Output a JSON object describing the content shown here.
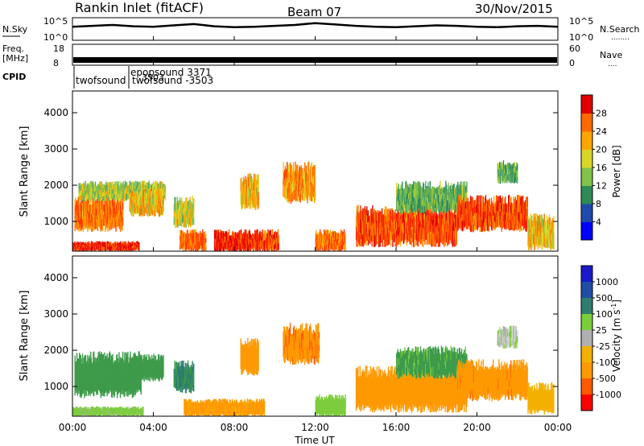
{
  "header": {
    "station": "Rankin Inlet (fitACF)",
    "beam": "Beam 07",
    "date": "30/Nov/2015"
  },
  "side_labels": {
    "nsky": "N.Sky",
    "freq_line1": "Freq.",
    "freq_line2": "[MHz]",
    "cpid": "CPID",
    "nsearch": "N.Search",
    "nsearch_dots": "........",
    "nave": "Nave",
    "nave_dots": "....",
    "noise_tick_hi": "10^5",
    "noise_tick_lo": "10^0",
    "freq_tick_hi": "18",
    "freq_tick_lo": "8",
    "nave_tick_hi": "60",
    "nave_tick_lo": "0"
  },
  "cpid_labels": [
    "twofsound",
    "epopsound 3371",
    "twofsound -3503",
    "3503"
  ],
  "colors": {
    "power_scale": [
      "#0000ff",
      "#1f49ab",
      "#2e8b57",
      "#55a868",
      "#7fc34a",
      "#d9d629",
      "#ffa500",
      "#ff6a00",
      "#ff3300",
      "#e00000"
    ],
    "velocity_scale": [
      "#ff0000",
      "#ff5a00",
      "#ff9900",
      "#f4b000",
      "#d9d9d9",
      "#b0b0b0",
      "#7ccd3c",
      "#3d9b4a",
      "#2e7d6e",
      "#1f4fa3",
      "#1a1acc"
    ]
  },
  "chart_data": [
    {
      "type": "line",
      "panel": "noise",
      "series": [
        {
          "name": "N.Sky",
          "x": [
            0,
            1,
            2,
            3,
            4,
            5,
            6,
            7,
            8,
            9,
            10,
            11,
            12,
            13,
            14,
            15,
            16,
            17,
            18,
            19,
            20,
            21,
            22,
            23,
            24
          ],
          "values": [
            3,
            3.2,
            3.4,
            3.1,
            3.0,
            3.3,
            3.6,
            3.1,
            2.9,
            3.0,
            3.2,
            3.4,
            3.8,
            3.5,
            3.2,
            3.0,
            2.9,
            3.1,
            3.3,
            3.2,
            3.0,
            2.9,
            3.1,
            3.2,
            3.0
          ]
        }
      ],
      "xlim": [
        0,
        24
      ],
      "ylim": [
        0,
        5
      ],
      "ylabel_left": "N.Sky",
      "ylabel_right": "N.Search"
    },
    {
      "type": "line",
      "panel": "frequency",
      "series": [
        {
          "name": "Freq.",
          "x": [
            0,
            24
          ],
          "values": [
            10.5,
            10.5
          ]
        }
      ],
      "xlim": [
        0,
        24
      ],
      "ylim": [
        8,
        18
      ],
      "ylabel_left": "Freq. [MHz]",
      "ylabel_right": "Nave"
    },
    {
      "type": "heatmap",
      "panel": "power",
      "ylabel": "Slant Range [km]",
      "colorbar_label": "Power [dB]",
      "colorbar_ticks": [
        4,
        8,
        12,
        16,
        20,
        24,
        28
      ],
      "colorbar_range": [
        0,
        32
      ],
      "xlim": [
        0,
        24
      ],
      "ylim": [
        180,
        4600
      ],
      "yticks": [
        1000,
        2000,
        3000,
        4000
      ],
      "regions": [
        {
          "t0": 0.0,
          "t1": 3.3,
          "r0": 200,
          "r1": 420,
          "value": 28
        },
        {
          "t0": 0.1,
          "t1": 2.5,
          "r0": 800,
          "r1": 1600,
          "value": 24
        },
        {
          "t0": 0.3,
          "t1": 4.6,
          "r0": 1600,
          "r1": 2050,
          "value": 16
        },
        {
          "t0": 2.8,
          "t1": 4.5,
          "r0": 1200,
          "r1": 1800,
          "value": 20
        },
        {
          "t0": 5.0,
          "t1": 6.0,
          "r0": 900,
          "r1": 1600,
          "value": 16
        },
        {
          "t0": 5.3,
          "t1": 6.6,
          "r0": 200,
          "r1": 700,
          "value": 24
        },
        {
          "t0": 7.0,
          "t1": 9.5,
          "r0": 200,
          "r1": 700,
          "value": 28
        },
        {
          "t0": 8.3,
          "t1": 9.2,
          "r0": 1400,
          "r1": 2200,
          "value": 20
        },
        {
          "t0": 9.4,
          "t1": 10.2,
          "r0": 200,
          "r1": 700,
          "value": 26
        },
        {
          "t0": 10.4,
          "t1": 12.0,
          "r0": 1600,
          "r1": 2500,
          "value": 22
        },
        {
          "t0": 12.0,
          "t1": 13.5,
          "r0": 200,
          "r1": 700,
          "value": 24
        },
        {
          "t0": 14.0,
          "t1": 19.0,
          "r0": 400,
          "r1": 1300,
          "value": 26
        },
        {
          "t0": 16.0,
          "t1": 19.5,
          "r0": 1300,
          "r1": 2000,
          "value": 12
        },
        {
          "t0": 19.0,
          "t1": 22.5,
          "r0": 800,
          "r1": 1600,
          "value": 26
        },
        {
          "t0": 21.0,
          "t1": 22.0,
          "r0": 2100,
          "r1": 2600,
          "value": 12
        },
        {
          "t0": 22.5,
          "t1": 23.8,
          "r0": 300,
          "r1": 1100,
          "value": 20
        }
      ]
    },
    {
      "type": "heatmap",
      "panel": "velocity",
      "ylabel": "Slant Range [km]",
      "colorbar_label": "Velocity [m s^-1]",
      "colorbar_ticks": [
        1000,
        500,
        100,
        25,
        -25,
        -100,
        -500,
        -1000
      ],
      "xlim": [
        0,
        24
      ],
      "ylim": [
        180,
        4600
      ],
      "yticks": [
        1000,
        2000,
        3000,
        4000
      ],
      "xticks": [
        "00:00",
        "04:00",
        "08:00",
        "12:00",
        "16:00",
        "20:00",
        "00:00"
      ],
      "xlabel": "Time UT",
      "regions": [
        {
          "t0": 0.1,
          "t1": 3.4,
          "r0": 800,
          "r1": 1800,
          "value": 200
        },
        {
          "t0": 0.0,
          "t1": 3.5,
          "r0": 200,
          "r1": 420,
          "value": 50
        },
        {
          "t0": 2.8,
          "t1": 4.5,
          "r0": 1200,
          "r1": 1800,
          "value": 300
        },
        {
          "t0": 5.0,
          "t1": 6.0,
          "r0": 900,
          "r1": 1600,
          "value": 600
        },
        {
          "t0": 5.5,
          "t1": 9.5,
          "r0": 200,
          "r1": 600,
          "value": -150
        },
        {
          "t0": 8.3,
          "t1": 9.2,
          "r0": 1400,
          "r1": 2200,
          "value": -200
        },
        {
          "t0": 10.4,
          "t1": 12.2,
          "r0": 1700,
          "r1": 2600,
          "value": -400
        },
        {
          "t0": 12.0,
          "t1": 13.5,
          "r0": 200,
          "r1": 700,
          "value": 60
        },
        {
          "t0": 14.0,
          "t1": 19.5,
          "r0": 400,
          "r1": 1400,
          "value": -300
        },
        {
          "t0": 16.0,
          "t1": 19.5,
          "r0": 1300,
          "r1": 2000,
          "value": 150
        },
        {
          "t0": 19.0,
          "t1": 22.5,
          "r0": 700,
          "r1": 1600,
          "value": -350
        },
        {
          "t0": 21.0,
          "t1": 22.0,
          "r0": 2100,
          "r1": 2600,
          "value": 10
        },
        {
          "t0": 22.5,
          "t1": 23.8,
          "r0": 300,
          "r1": 1000,
          "value": -60
        }
      ]
    }
  ]
}
